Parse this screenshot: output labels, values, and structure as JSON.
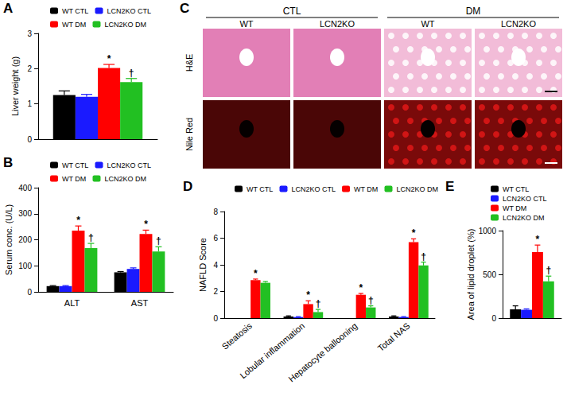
{
  "chart_data": [
    {
      "type": "bar",
      "title": "A",
      "y_label": "Liver weight (g)",
      "categories": [
        null
      ],
      "ylim": [
        0,
        3
      ],
      "yticks": [
        0,
        1,
        2,
        3
      ],
      "grid": false,
      "legend": "top",
      "tick_labels": "y",
      "series": [
        {
          "name": "WT CTL",
          "color": "#000000",
          "values": [
            1.25
          ],
          "errors": [
            0.12
          ],
          "significance": [
            null
          ]
        },
        {
          "name": "LCN2KO CTL",
          "color": "#1a1aff",
          "values": [
            1.2
          ],
          "errors": [
            0.07
          ],
          "significance": [
            null
          ]
        },
        {
          "name": "WT DM",
          "color": "#ff0000",
          "values": [
            2.02
          ],
          "errors": [
            0.1
          ],
          "significance": [
            "*"
          ]
        },
        {
          "name": "LCN2KO DM",
          "color": "#22c022",
          "values": [
            1.62
          ],
          "errors": [
            0.1
          ],
          "significance": [
            "†"
          ]
        }
      ]
    },
    {
      "type": "bar",
      "title": "B",
      "y_label": "Serum conc. (U/L)",
      "categories": [
        "ALT",
        "AST"
      ],
      "ylim": [
        0,
        400
      ],
      "yticks": [
        0,
        100,
        200,
        300,
        400
      ],
      "grid": false,
      "legend": "top",
      "series": [
        {
          "name": "WT CTL",
          "color": "#000000",
          "values": [
            22,
            75
          ],
          "errors": [
            2,
            3
          ],
          "significance": [
            null,
            null
          ]
        },
        {
          "name": "LCN2KO CTL",
          "color": "#1a1aff",
          "values": [
            22,
            88
          ],
          "errors": [
            2,
            4
          ],
          "significance": [
            null,
            null
          ]
        },
        {
          "name": "WT DM",
          "color": "#ff0000",
          "values": [
            235,
            222
          ],
          "errors": [
            18,
            15
          ],
          "significance": [
            "*",
            "*"
          ]
        },
        {
          "name": "LCN2KO DM",
          "color": "#22c022",
          "values": [
            168,
            155
          ],
          "errors": [
            18,
            18
          ],
          "significance": [
            "†",
            "†"
          ]
        }
      ]
    },
    {
      "type": "bar",
      "title": "D",
      "y_label": "NAFLD Score",
      "categories": [
        "Steatosis",
        "Lobular inflammation",
        "Hepatocyte ballooning",
        "Total NAS"
      ],
      "ylim": [
        0,
        8
      ],
      "yticks": [
        0,
        2,
        4,
        6,
        8
      ],
      "grid": false,
      "legend": "top",
      "series": [
        {
          "name": "WT CTL",
          "color": "#000000",
          "values": [
            0,
            0.12,
            0,
            0.12
          ],
          "errors": [
            0,
            0.05,
            0,
            0.05
          ],
          "significance": [
            null,
            null,
            null,
            null
          ]
        },
        {
          "name": "LCN2KO CTL",
          "color": "#1a1aff",
          "values": [
            0,
            0.08,
            0,
            0.08
          ],
          "errors": [
            0,
            0.03,
            0,
            0.03
          ],
          "significance": [
            null,
            null,
            null,
            null
          ]
        },
        {
          "name": "WT DM",
          "color": "#ff0000",
          "values": [
            2.85,
            1.05,
            1.75,
            5.7
          ],
          "errors": [
            0.08,
            0.25,
            0.1,
            0.25
          ],
          "significance": [
            "*",
            "*",
            "*",
            "*"
          ]
        },
        {
          "name": "LCN2KO DM",
          "color": "#22c022",
          "values": [
            2.65,
            0.45,
            0.8,
            3.95
          ],
          "errors": [
            0.1,
            0.2,
            0.12,
            0.25
          ],
          "significance": [
            null,
            "†",
            "†",
            "†"
          ]
        }
      ]
    },
    {
      "type": "bar",
      "title": "E",
      "y_label": "Area of lipid droplet (%)",
      "categories": [
        null
      ],
      "ylim": [
        0,
        1000
      ],
      "yticks": [
        0,
        500,
        1000
      ],
      "grid": false,
      "legend": "top",
      "tick_labels": "y",
      "series": [
        {
          "name": "WT CTL",
          "color": "#000000",
          "values": [
            100
          ],
          "errors": [
            40
          ],
          "significance": [
            null
          ]
        },
        {
          "name": "LCN2KO CTL",
          "color": "#1a1aff",
          "values": [
            95
          ],
          "errors": [
            10
          ],
          "significance": [
            null
          ]
        },
        {
          "name": "WT DM",
          "color": "#ff0000",
          "values": [
            755
          ],
          "errors": [
            80
          ],
          "significance": [
            "*"
          ]
        },
        {
          "name": "LCN2KO DM",
          "color": "#22c022",
          "values": [
            420
          ],
          "errors": [
            60
          ],
          "significance": [
            "†"
          ]
        }
      ]
    }
  ],
  "image_panel": {
    "title": "C",
    "groups": [
      {
        "label": "CTL",
        "columns": [
          "WT",
          "LCN2KO"
        ]
      },
      {
        "label": "DM",
        "columns": [
          "WT",
          "LCN2KO"
        ]
      }
    ],
    "rows": [
      "H&E",
      "Nile Red"
    ]
  }
}
